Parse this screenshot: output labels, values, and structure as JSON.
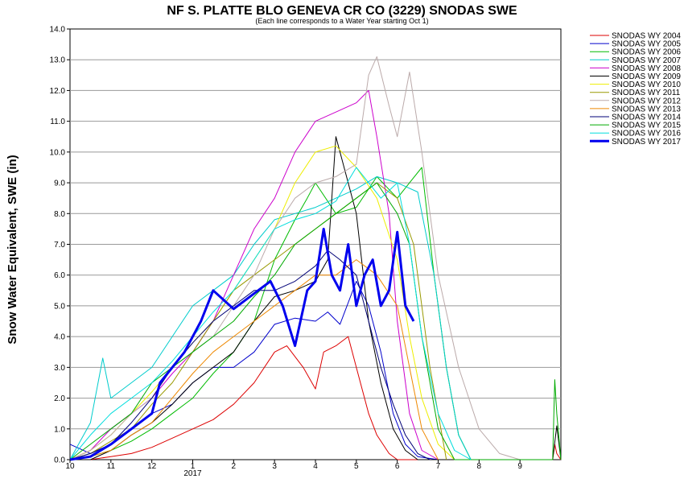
{
  "chart_data": {
    "type": "line",
    "title": "NF S. PLATTE BLO GENEVA CR CO (3229) SNODAS SWE",
    "subtitle": "(Each line corresponds to a Water Year starting Oct 1)",
    "ylabel": "Snow Water Equivalent, SWE (in)",
    "xlabel": "",
    "ylim": [
      0,
      14
    ],
    "yticks": [
      "0.0",
      "1.0",
      "2.0",
      "3.0",
      "4.0",
      "5.0",
      "6.0",
      "7.0",
      "8.0",
      "9.0",
      "10.0",
      "11.0",
      "12.0",
      "13.0",
      "14.0"
    ],
    "xlim": [
      0,
      12
    ],
    "xticks": [
      {
        "x": 0,
        "label": "10"
      },
      {
        "x": 1,
        "label": "11"
      },
      {
        "x": 2,
        "label": "12"
      },
      {
        "x": 3,
        "label": "1"
      },
      {
        "x": 4,
        "label": "2"
      },
      {
        "x": 5,
        "label": "3"
      },
      {
        "x": 6,
        "label": "4"
      },
      {
        "x": 7,
        "label": "5"
      },
      {
        "x": 8,
        "label": "6"
      },
      {
        "x": 9,
        "label": "7"
      },
      {
        "x": 10,
        "label": "8"
      },
      {
        "x": 11,
        "label": "9"
      }
    ],
    "year_label": {
      "x": 3,
      "label": "2017"
    },
    "grid": "horizontal",
    "legend_position": "right",
    "series": [
      {
        "name": "SNODAS WY 2004",
        "color": "#dd0000",
        "width": 1,
        "x": [
          0,
          0.5,
          1,
          1.5,
          2,
          2.5,
          3,
          3.5,
          4,
          4.5,
          5,
          5.3,
          5.7,
          6,
          6.2,
          6.5,
          6.8,
          7,
          7.3,
          7.5,
          7.8,
          8,
          11.8,
          11.85,
          11.9,
          12
        ],
        "y": [
          0,
          0,
          0.1,
          0.2,
          0.4,
          0.7,
          1,
          1.3,
          1.8,
          2.5,
          3.5,
          3.7,
          3,
          2.3,
          3.5,
          3.7,
          4,
          3,
          1.5,
          0.8,
          0.2,
          0,
          0,
          0.5,
          0.2,
          0
        ]
      },
      {
        "name": "SNODAS WY 2005",
        "color": "#0000cc",
        "width": 1,
        "x": [
          0,
          0.5,
          1,
          1.5,
          2,
          2.5,
          3,
          3.5,
          4,
          4.5,
          5,
          5.5,
          6,
          6.3,
          6.6,
          7,
          7.3,
          7.6,
          7.9,
          8.2,
          8.5,
          9
        ],
        "y": [
          0.5,
          0.2,
          0.5,
          1,
          1.5,
          1.8,
          2.5,
          3,
          3,
          3.5,
          4.4,
          4.6,
          4.5,
          4.8,
          4.4,
          5.8,
          5,
          3.5,
          1.5,
          0.5,
          0.1,
          0
        ]
      },
      {
        "name": "SNODAS WY 2006",
        "color": "#00bb00",
        "width": 1,
        "x": [
          0,
          0.5,
          1,
          1.5,
          2,
          2.5,
          3,
          3.5,
          4,
          4.5,
          5,
          5.5,
          5.8,
          6,
          6.5,
          7,
          7.5,
          8,
          8.3,
          8.6,
          8.9,
          9.2,
          9.5,
          9.8
        ],
        "y": [
          0,
          0.1,
          0.3,
          0.6,
          1,
          1.5,
          2,
          2.8,
          3.5,
          4.5,
          6.5,
          7.8,
          8.5,
          9,
          8,
          8.2,
          9.2,
          8.5,
          9,
          9.5,
          6,
          3,
          0.8,
          0
        ]
      },
      {
        "name": "SNODAS WY 2007",
        "color": "#00cccc",
        "width": 1,
        "x": [
          0,
          0.5,
          0.8,
          1,
          1.5,
          2,
          2.5,
          3,
          3.5,
          4,
          4.5,
          5,
          5.5,
          6,
          6.5,
          7,
          7.5,
          8,
          8.5,
          8.9,
          9.2,
          9.5,
          9.8
        ],
        "y": [
          0,
          1.2,
          3.3,
          2,
          2.5,
          3,
          4,
          5,
          5.5,
          6,
          7,
          7.8,
          8,
          8.2,
          8.5,
          8.8,
          9.2,
          9,
          8.7,
          6,
          3,
          0.8,
          0
        ]
      },
      {
        "name": "SNODAS WY 2008",
        "color": "#cc00cc",
        "width": 1,
        "x": [
          0,
          0.5,
          1,
          1.5,
          2,
          2.5,
          3,
          3.5,
          4,
          4.5,
          5,
          5.5,
          6,
          6.5,
          7,
          7.3,
          7.5,
          7.8,
          8,
          8.3,
          8.6,
          9
        ],
        "y": [
          0,
          0.3,
          1,
          1.5,
          2,
          2.8,
          3.5,
          4.5,
          6,
          7.5,
          8.5,
          10,
          11,
          11.3,
          11.6,
          12,
          10.5,
          8,
          4.5,
          1.5,
          0.3,
          0
        ]
      },
      {
        "name": "SNODAS WY 2009",
        "color": "#000000",
        "width": 1,
        "x": [
          0,
          0.5,
          1,
          1.5,
          2,
          2.5,
          3,
          3.5,
          4,
          4.5,
          5,
          5.5,
          6,
          6.3,
          6.5,
          6.8,
          7,
          7.3,
          7.6,
          7.9,
          8.2,
          8.5,
          11.8,
          11.9,
          12
        ],
        "y": [
          0,
          0,
          0.3,
          0.8,
          1.2,
          1.8,
          2.5,
          3,
          3.5,
          4.5,
          5.3,
          5.5,
          5.8,
          6.5,
          10.5,
          9,
          8,
          4.5,
          2.5,
          1,
          0.3,
          0,
          0,
          1.1,
          0
        ]
      },
      {
        "name": "SNODAS WY 2010",
        "color": "#eeee00",
        "width": 1,
        "x": [
          0,
          0.5,
          1,
          1.5,
          2,
          2.5,
          3,
          3.5,
          4,
          4.5,
          5,
          5.5,
          6,
          6.5,
          7,
          7.5,
          8,
          8.3,
          8.6,
          9,
          9.4
        ],
        "y": [
          0,
          0.3,
          0.8,
          1.5,
          2.2,
          3,
          3.8,
          4.5,
          5.5,
          6.5,
          7.5,
          9,
          10,
          10.2,
          9.5,
          8.5,
          6.5,
          4,
          2,
          0.5,
          0
        ]
      },
      {
        "name": "SNODAS WY 2011",
        "color": "#999900",
        "width": 1,
        "x": [
          0,
          0.5,
          1,
          1.5,
          2,
          2.5,
          3,
          3.5,
          4,
          4.5,
          5,
          5.5,
          6,
          6.5,
          7,
          7.5,
          8,
          8.4,
          8.8,
          9.2
        ],
        "y": [
          0,
          0.2,
          0.6,
          1,
          1.8,
          2.5,
          3.5,
          4.5,
          5.5,
          6,
          6.5,
          7,
          7.5,
          8,
          8.5,
          9,
          8.5,
          7,
          3,
          0
        ]
      },
      {
        "name": "SNODAS WY 2012",
        "color": "#bbaaaa",
        "width": 1,
        "x": [
          0,
          0.5,
          1,
          1.5,
          2,
          2.5,
          3,
          3.5,
          4,
          4.5,
          5,
          5.5,
          6,
          6.5,
          7,
          7.3,
          7.5,
          7.8,
          8,
          8.3,
          8.6,
          9,
          9.5,
          10,
          10.5,
          11
        ],
        "y": [
          0,
          0.3,
          0.8,
          1.5,
          2,
          3,
          3.5,
          4,
          5,
          6,
          7.5,
          8.5,
          9,
          9.2,
          9.6,
          12.5,
          13.1,
          11.5,
          10.5,
          12.6,
          10,
          6,
          3,
          1,
          0.2,
          0
        ]
      },
      {
        "name": "SNODAS WY 2013",
        "color": "#ee8800",
        "width": 1,
        "x": [
          0,
          0.5,
          1,
          1.5,
          2,
          2.5,
          3,
          3.5,
          4,
          4.5,
          5,
          5.5,
          6,
          6.5,
          7,
          7.5,
          8,
          8.3,
          8.6,
          9
        ],
        "y": [
          0,
          0.1,
          0.3,
          0.8,
          1.2,
          2,
          2.8,
          3.5,
          4,
          4.5,
          5,
          5.5,
          6,
          6,
          6.5,
          6,
          5,
          3,
          1,
          0
        ]
      },
      {
        "name": "SNODAS WY 2014",
        "color": "#000077",
        "width": 1,
        "x": [
          0,
          0.5,
          1,
          1.5,
          2,
          2.5,
          3,
          3.5,
          4,
          4.5,
          5,
          5.5,
          6,
          6.3,
          6.6,
          7,
          7.3,
          7.6,
          7.9,
          8.2,
          8.5,
          8.8
        ],
        "y": [
          0,
          0.2,
          0.5,
          1.2,
          2,
          3,
          3.8,
          4.5,
          5,
          5.5,
          5.5,
          5.8,
          6.3,
          6.8,
          6.5,
          6,
          4.5,
          3,
          1.8,
          0.8,
          0.2,
          0
        ]
      },
      {
        "name": "SNODAS WY 2015",
        "color": "#00aa00",
        "width": 1,
        "x": [
          0,
          0.5,
          1,
          1.5,
          2,
          2.5,
          3,
          3.5,
          4,
          4.5,
          5,
          5.5,
          6,
          6.5,
          7,
          7.5,
          8,
          8.3,
          8.6,
          9,
          9.4,
          11.8,
          11.85,
          11.9,
          12
        ],
        "y": [
          0,
          0.5,
          1,
          1.5,
          2.5,
          3,
          3.5,
          4,
          4.5,
          5.3,
          6,
          7,
          7.5,
          8,
          8.5,
          9,
          8,
          7,
          4,
          1,
          0,
          0,
          2.6,
          1.5,
          0
        ]
      },
      {
        "name": "SNODAS WY 2016",
        "color": "#00dddd",
        "width": 1,
        "x": [
          0,
          0.5,
          1,
          1.5,
          2,
          2.5,
          3,
          3.5,
          4,
          4.5,
          5,
          5.5,
          6,
          6.5,
          7,
          7.3,
          7.6,
          8,
          8.3,
          8.6,
          9,
          9.4,
          9.8
        ],
        "y": [
          0,
          0.8,
          1.5,
          2,
          2.5,
          3.2,
          4,
          4.8,
          5.5,
          6.5,
          7.5,
          7.8,
          8,
          8.4,
          9.5,
          9,
          8.5,
          9,
          7,
          4,
          1.5,
          0.3,
          0
        ]
      },
      {
        "name": "SNODAS WY 2017",
        "color": "#0000ee",
        "width": 3,
        "x": [
          0,
          0.5,
          1,
          1.5,
          2,
          2.2,
          2.5,
          2.8,
          3,
          3.2,
          3.5,
          4,
          4.3,
          4.6,
          4.9,
          5.2,
          5.5,
          5.8,
          6,
          6.2,
          6.4,
          6.6,
          6.8,
          7,
          7.2,
          7.4,
          7.6,
          7.8,
          8,
          8.2,
          8.4
        ],
        "y": [
          0,
          0.1,
          0.5,
          1,
          1.5,
          2.5,
          3,
          3.5,
          4,
          4.5,
          5.5,
          4.9,
          5.2,
          5.5,
          5.8,
          5,
          3.7,
          5.5,
          5.8,
          7.5,
          6,
          5.5,
          7,
          5,
          6,
          6.5,
          5,
          5.5,
          7.4,
          5,
          4.5
        ]
      }
    ]
  }
}
